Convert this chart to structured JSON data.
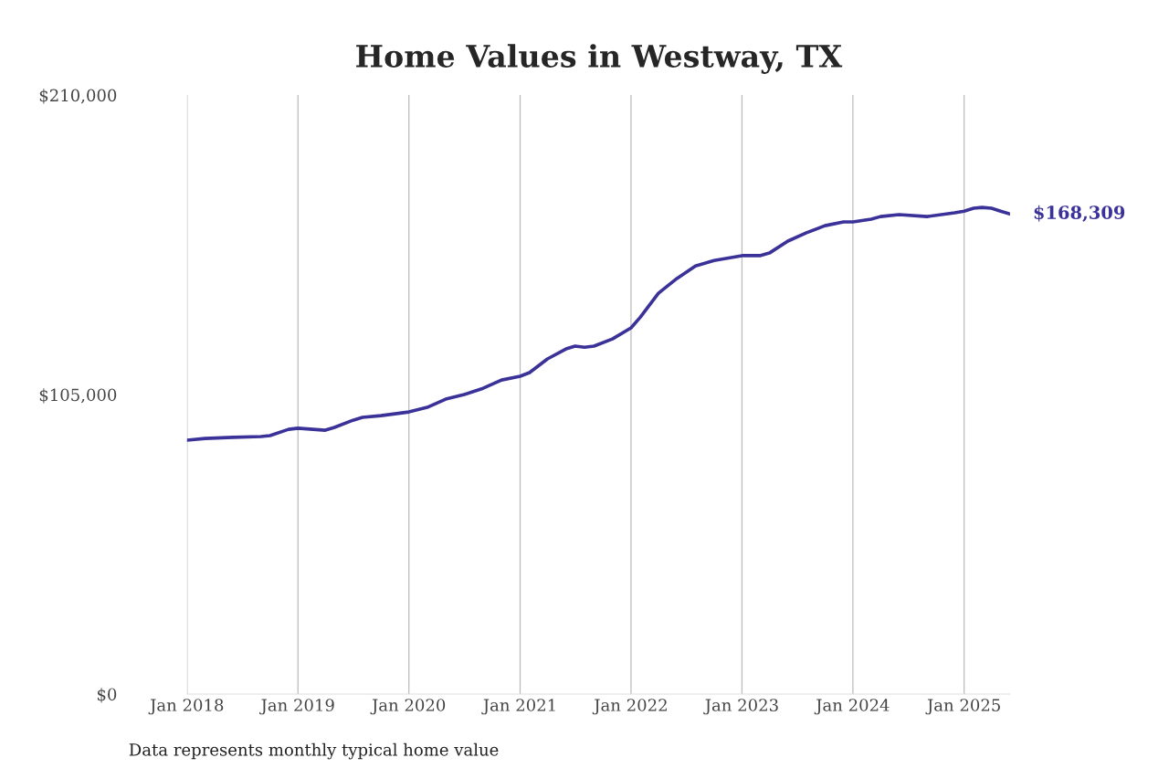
{
  "chart_data": {
    "type": "line",
    "title": "Home Values in Westway, TX",
    "x": [
      "2018-01",
      "2018-03",
      "2018-06",
      "2018-09",
      "2018-10",
      "2018-12",
      "2019-01",
      "2019-04",
      "2019-05",
      "2019-07",
      "2019-08",
      "2019-10",
      "2020-01",
      "2020-03",
      "2020-05",
      "2020-07",
      "2020-09",
      "2020-11",
      "2021-01",
      "2021-02",
      "2021-04",
      "2021-06",
      "2021-07",
      "2021-08",
      "2021-09",
      "2021-11",
      "2022-01",
      "2022-02",
      "2022-04",
      "2022-06",
      "2022-08",
      "2022-10",
      "2023-01",
      "2023-03",
      "2023-04",
      "2023-06",
      "2023-08",
      "2023-10",
      "2023-12",
      "2024-01",
      "2024-03",
      "2024-04",
      "2024-06",
      "2024-09",
      "2024-12",
      "2025-01",
      "2025-02",
      "2025-03",
      "2025-04",
      "2025-05",
      "2025-06"
    ],
    "series": [
      {
        "color": "#3a3199",
        "values": [
          89000,
          89600,
          90000,
          90300,
          90600,
          92800,
          93200,
          92500,
          93500,
          96000,
          97000,
          97600,
          98900,
          100500,
          103400,
          105000,
          107200,
          110100,
          111400,
          112700,
          117500,
          121000,
          122000,
          121600,
          122000,
          124500,
          128400,
          132200,
          140500,
          145700,
          150100,
          152000,
          153700,
          153700,
          154600,
          158800,
          161700,
          164200,
          165500,
          165500,
          166500,
          167400,
          168100,
          167400,
          168700,
          169300,
          170300,
          170600,
          170300,
          169300,
          168309
        ]
      }
    ],
    "xticks": [
      {
        "value": "2018-01",
        "label": "Jan 2018"
      },
      {
        "value": "2019-01",
        "label": "Jan 2019"
      },
      {
        "value": "2020-01",
        "label": "Jan 2020"
      },
      {
        "value": "2021-01",
        "label": "Jan 2021"
      },
      {
        "value": "2022-01",
        "label": "Jan 2022"
      },
      {
        "value": "2023-01",
        "label": "Jan 2023"
      },
      {
        "value": "2024-01",
        "label": "Jan 2024"
      },
      {
        "value": "2025-01",
        "label": "Jan 2025"
      }
    ],
    "xlim": [
      "2018-01",
      "2025-06"
    ],
    "ylim": [
      0,
      210000
    ],
    "yticks": [
      {
        "value": 0,
        "label": "$0"
      },
      {
        "value": 105000,
        "label": "$105,000"
      },
      {
        "value": 210000,
        "label": "$210,000"
      }
    ],
    "grid": "x",
    "annotations": [
      {
        "text": "$168,309",
        "x": "2025-06",
        "y": 168309
      },
      "Data represents monthly typical home value"
    ]
  }
}
